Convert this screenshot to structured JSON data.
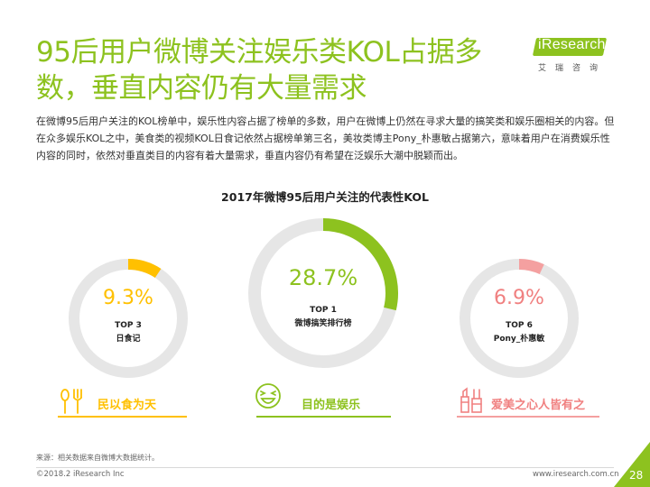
{
  "header": {
    "title_line1": "95后用户微博关注娱乐类KOL占据多",
    "title_line2": "数，垂直内容仍有大量需求",
    "logo_text": "iResearch",
    "logo_sub": "艾瑞咨询"
  },
  "intro": "在微博95后用户关注的KOL榜单中，娱乐性内容占据了榜单的多数，用户在微博上仍然在寻求大量的搞笑类和娱乐圈相关的内容。但在众多娱乐KOL之中，美食类的视频KOL日食记依然占据榜单第三名，美妆类博主Pony_朴惠敏占据第六，意味着用户在消费娱乐性内容的同时，依然对垂直类目的内容有着大量需求，垂直内容仍有希望在泛娱乐大潮中脱颖而出。",
  "chart_data": {
    "type": "pie",
    "title": "2017年微博95后用户关注的代表性KOL",
    "items": [
      {
        "pct_label": "9.3%",
        "value": 9.3,
        "rank": "TOP 3",
        "name": "日食记",
        "tagline": "民以食为天",
        "color": "#ffc000",
        "icon": "utensils-icon"
      },
      {
        "pct_label": "28.7%",
        "value": 28.7,
        "rank": "TOP 1",
        "name": "微博搞笑排行榜",
        "tagline": "目的是娱乐",
        "color": "#8dc21f",
        "icon": "laughing-face-icon"
      },
      {
        "pct_label": "6.9%",
        "value": 6.9,
        "rank": "TOP 6",
        "name": "Pony_朴惠敏",
        "tagline": "爱美之心人皆有之",
        "color": "#f4a0a0",
        "icon": "makeup-icon"
      }
    ]
  },
  "footer": {
    "source": "来源：相关数据来自微博大数据统计。",
    "copyright": "©2018.2 iResearch Inc",
    "site": "www.iresearch.com.cn",
    "page": "28"
  }
}
